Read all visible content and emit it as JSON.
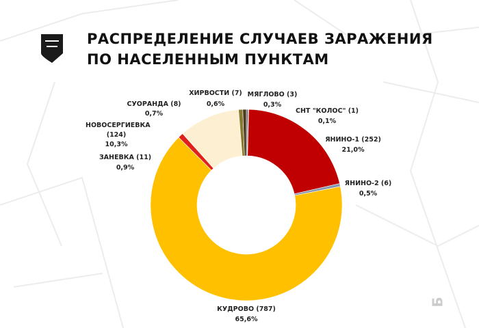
{
  "chart_data": {
    "type": "donut",
    "title": "РАСПРЕДЕЛЕНИЕ СЛУЧАЕВ ЗАРАЖЕНИЯ ПО НАСЕЛЕННЫМ ПУНКТАМ",
    "categories": [
      "МЯГЛОВО (3)",
      "СНТ \"КОЛОС\" (1)",
      "ЯНИНО-1 (252)",
      "ЯНИНО-2 (6)",
      "КУДРОВО (787)",
      "ЗАНЕВКА (11)",
      "НОВОСЕРГИЕВКА (124)",
      "СУОРАНДА (8)",
      "ХИРВОСТИ (7)"
    ],
    "values": [
      0.3,
      0.1,
      21.0,
      0.5,
      65.6,
      0.9,
      10.3,
      0.7,
      0.6
    ],
    "value_labels": [
      "0,3%",
      "0,1%",
      "21,0%",
      "0,5%",
      "65,6%",
      "0,9%",
      "10,3%",
      "0,7%",
      "0,6%"
    ],
    "colors": [
      "#6b6b6b",
      "#2e2e2e",
      "#c00000",
      "#8496b0",
      "#ffc000",
      "#e0201b",
      "#fdf0d2",
      "#8a7a30",
      "#4a3a20"
    ]
  },
  "map_label": "Б"
}
